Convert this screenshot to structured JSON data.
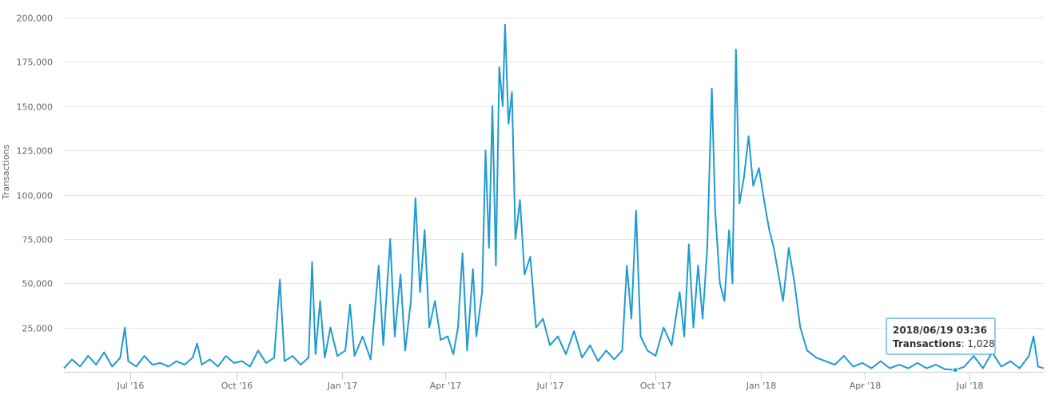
{
  "chart_data": {
    "type": "line",
    "ylabel": "Transactions",
    "ylim": [
      0,
      200000
    ],
    "y_ticks": [
      "200,000",
      "175,000",
      "150,000",
      "125,000",
      "100,000",
      "75,000",
      "50,000",
      "25,000"
    ],
    "x_ticks": [
      "Jul '16",
      "Oct '16",
      "Jan '17",
      "Apr '17",
      "Jul '17",
      "Oct '17",
      "Jan '18",
      "Apr '18",
      "Jul '18"
    ],
    "x_range": [
      "2016-05-04",
      "2018-09-04"
    ],
    "line_color": "#1e9bd1",
    "grid": true,
    "points": [
      [
        "2016-05-04",
        2000
      ],
      [
        "2016-05-11",
        7000
      ],
      [
        "2016-05-18",
        3000
      ],
      [
        "2016-05-25",
        9000
      ],
      [
        "2016-06-01",
        4000
      ],
      [
        "2016-06-08",
        11000
      ],
      [
        "2016-06-15",
        3000
      ],
      [
        "2016-06-22",
        8000
      ],
      [
        "2016-06-26",
        25000
      ],
      [
        "2016-06-29",
        6000
      ],
      [
        "2016-07-06",
        3000
      ],
      [
        "2016-07-13",
        9000
      ],
      [
        "2016-07-20",
        4000
      ],
      [
        "2016-07-27",
        5000
      ],
      [
        "2016-08-03",
        3000
      ],
      [
        "2016-08-10",
        6000
      ],
      [
        "2016-08-17",
        4000
      ],
      [
        "2016-08-24",
        8000
      ],
      [
        "2016-08-28",
        16000
      ],
      [
        "2016-09-01",
        4000
      ],
      [
        "2016-09-08",
        7000
      ],
      [
        "2016-09-15",
        3000
      ],
      [
        "2016-09-22",
        9000
      ],
      [
        "2016-09-29",
        5000
      ],
      [
        "2016-10-06",
        6000
      ],
      [
        "2016-10-13",
        3000
      ],
      [
        "2016-10-20",
        12000
      ],
      [
        "2016-10-27",
        5000
      ],
      [
        "2016-11-03",
        8000
      ],
      [
        "2016-11-08",
        52000
      ],
      [
        "2016-11-12",
        6000
      ],
      [
        "2016-11-19",
        9000
      ],
      [
        "2016-11-26",
        4000
      ],
      [
        "2016-12-03",
        8000
      ],
      [
        "2016-12-06",
        62000
      ],
      [
        "2016-12-09",
        10000
      ],
      [
        "2016-12-13",
        40000
      ],
      [
        "2016-12-17",
        8000
      ],
      [
        "2016-12-22",
        25000
      ],
      [
        "2016-12-28",
        9000
      ],
      [
        "2017-01-04",
        12000
      ],
      [
        "2017-01-08",
        38000
      ],
      [
        "2017-01-12",
        9000
      ],
      [
        "2017-01-19",
        20000
      ],
      [
        "2017-01-26",
        7000
      ],
      [
        "2017-02-02",
        60000
      ],
      [
        "2017-02-06",
        15000
      ],
      [
        "2017-02-12",
        75000
      ],
      [
        "2017-02-16",
        20000
      ],
      [
        "2017-02-21",
        55000
      ],
      [
        "2017-02-25",
        12000
      ],
      [
        "2017-03-02",
        40000
      ],
      [
        "2017-03-06",
        98000
      ],
      [
        "2017-03-10",
        45000
      ],
      [
        "2017-03-14",
        80000
      ],
      [
        "2017-03-18",
        25000
      ],
      [
        "2017-03-23",
        40000
      ],
      [
        "2017-03-28",
        18000
      ],
      [
        "2017-04-03",
        20000
      ],
      [
        "2017-04-08",
        10000
      ],
      [
        "2017-04-12",
        25000
      ],
      [
        "2017-04-16",
        67000
      ],
      [
        "2017-04-20",
        12000
      ],
      [
        "2017-04-25",
        58000
      ],
      [
        "2017-04-28",
        20000
      ],
      [
        "2017-05-03",
        45000
      ],
      [
        "2017-05-06",
        125000
      ],
      [
        "2017-05-09",
        70000
      ],
      [
        "2017-05-12",
        150000
      ],
      [
        "2017-05-15",
        60000
      ],
      [
        "2017-05-18",
        172000
      ],
      [
        "2017-05-21",
        150000
      ],
      [
        "2017-05-23",
        196000
      ],
      [
        "2017-05-26",
        140000
      ],
      [
        "2017-05-29",
        158000
      ],
      [
        "2017-06-01",
        75000
      ],
      [
        "2017-06-05",
        97000
      ],
      [
        "2017-06-09",
        55000
      ],
      [
        "2017-06-14",
        65000
      ],
      [
        "2017-06-19",
        25000
      ],
      [
        "2017-06-25",
        30000
      ],
      [
        "2017-07-01",
        15000
      ],
      [
        "2017-07-08",
        20000
      ],
      [
        "2017-07-15",
        10000
      ],
      [
        "2017-07-22",
        23000
      ],
      [
        "2017-07-29",
        8000
      ],
      [
        "2017-08-05",
        15000
      ],
      [
        "2017-08-12",
        6000
      ],
      [
        "2017-08-19",
        12000
      ],
      [
        "2017-08-26",
        7000
      ],
      [
        "2017-09-02",
        12000
      ],
      [
        "2017-09-06",
        60000
      ],
      [
        "2017-09-10",
        30000
      ],
      [
        "2017-09-14",
        91000
      ],
      [
        "2017-09-18",
        20000
      ],
      [
        "2017-09-24",
        12000
      ],
      [
        "2017-10-01",
        9000
      ],
      [
        "2017-10-08",
        25000
      ],
      [
        "2017-10-15",
        15000
      ],
      [
        "2017-10-22",
        45000
      ],
      [
        "2017-10-26",
        20000
      ],
      [
        "2017-10-30",
        72000
      ],
      [
        "2017-11-03",
        25000
      ],
      [
        "2017-11-07",
        60000
      ],
      [
        "2017-11-11",
        30000
      ],
      [
        "2017-11-15",
        70000
      ],
      [
        "2017-11-19",
        160000
      ],
      [
        "2017-11-22",
        90000
      ],
      [
        "2017-11-26",
        50000
      ],
      [
        "2017-11-30",
        40000
      ],
      [
        "2017-12-04",
        80000
      ],
      [
        "2017-12-07",
        50000
      ],
      [
        "2017-12-10",
        182000
      ],
      [
        "2017-12-13",
        95000
      ],
      [
        "2017-12-17",
        110000
      ],
      [
        "2017-12-21",
        133000
      ],
      [
        "2017-12-25",
        105000
      ],
      [
        "2017-12-30",
        115000
      ],
      [
        "2018-01-04",
        95000
      ],
      [
        "2018-01-08",
        80000
      ],
      [
        "2018-01-12",
        70000
      ],
      [
        "2018-01-16",
        55000
      ],
      [
        "2018-01-20",
        40000
      ],
      [
        "2018-01-25",
        70000
      ],
      [
        "2018-01-30",
        50000
      ],
      [
        "2018-02-04",
        25000
      ],
      [
        "2018-02-10",
        12000
      ],
      [
        "2018-02-18",
        8000
      ],
      [
        "2018-02-26",
        6000
      ],
      [
        "2018-03-06",
        4000
      ],
      [
        "2018-03-14",
        9000
      ],
      [
        "2018-03-22",
        3000
      ],
      [
        "2018-03-30",
        5000
      ],
      [
        "2018-04-07",
        2000
      ],
      [
        "2018-04-15",
        6000
      ],
      [
        "2018-04-23",
        2000
      ],
      [
        "2018-05-01",
        4000
      ],
      [
        "2018-05-09",
        2000
      ],
      [
        "2018-05-17",
        5000
      ],
      [
        "2018-05-25",
        2000
      ],
      [
        "2018-06-02",
        4000
      ],
      [
        "2018-06-10",
        1500
      ],
      [
        "2018-06-19",
        1028
      ],
      [
        "2018-06-27",
        3000
      ],
      [
        "2018-07-05",
        9000
      ],
      [
        "2018-07-13",
        2000
      ],
      [
        "2018-07-21",
        11000
      ],
      [
        "2018-07-29",
        3000
      ],
      [
        "2018-08-06",
        6000
      ],
      [
        "2018-08-14",
        2000
      ],
      [
        "2018-08-22",
        9000
      ],
      [
        "2018-08-26",
        20000
      ],
      [
        "2018-08-30",
        3000
      ],
      [
        "2018-09-04",
        2000
      ]
    ],
    "tooltip": {
      "date": "2018/06/19 03:36",
      "label": "Transactions",
      "value": "1,028",
      "x": "2018-06-19",
      "y": 1028
    }
  }
}
